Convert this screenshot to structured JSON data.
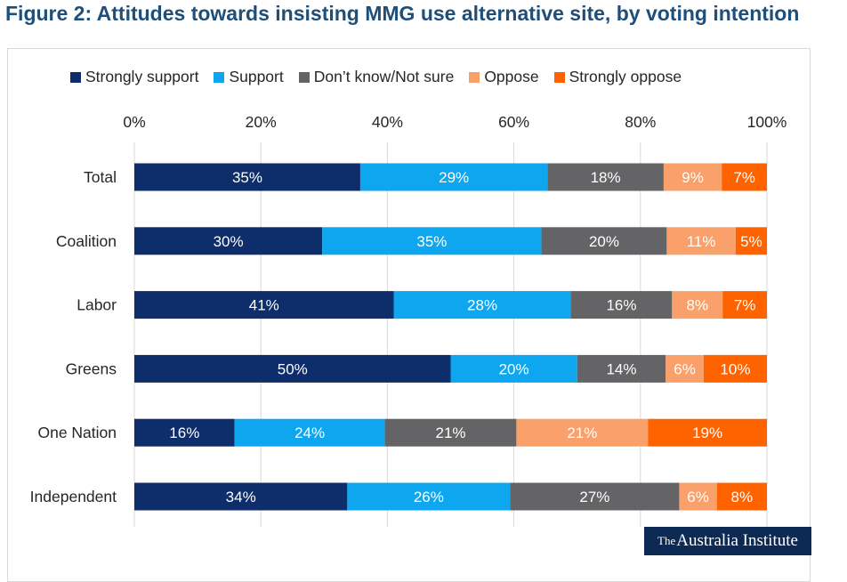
{
  "header": {
    "title": "Figure 2: Attitudes towards insisting MMG use alternative site, by voting intention"
  },
  "logo": {
    "prefix": "The",
    "name": "Australia Institute"
  },
  "chart_data": {
    "type": "bar",
    "orientation": "horizontal",
    "stacked": "100%",
    "title": "",
    "xlabel": "",
    "ylabel": "",
    "xlim": [
      0,
      100
    ],
    "x_ticks": [
      "0%",
      "20%",
      "40%",
      "60%",
      "80%",
      "100%"
    ],
    "grid": "vertical",
    "legend_position": "top",
    "categories": [
      "Total",
      "Coalition",
      "Labor",
      "Greens",
      "One Nation",
      "Independent"
    ],
    "series": [
      {
        "name": "Strongly support",
        "color": "#0d2d6b",
        "values": [
          35,
          30,
          41,
          50,
          16,
          34
        ]
      },
      {
        "name": "Support",
        "color": "#0da6ef",
        "values": [
          29,
          35,
          28,
          20,
          24,
          26
        ]
      },
      {
        "name": "Don’t know/Not sure",
        "color": "#646466",
        "values": [
          18,
          20,
          16,
          14,
          21,
          27
        ]
      },
      {
        "name": "Oppose",
        "color": "#f9a06b",
        "values": [
          9,
          11,
          8,
          6,
          21,
          6
        ]
      },
      {
        "name": "Strongly oppose",
        "color": "#ff6300",
        "values": [
          7,
          5,
          7,
          10,
          19,
          8
        ]
      }
    ],
    "value_suffix": "%"
  }
}
